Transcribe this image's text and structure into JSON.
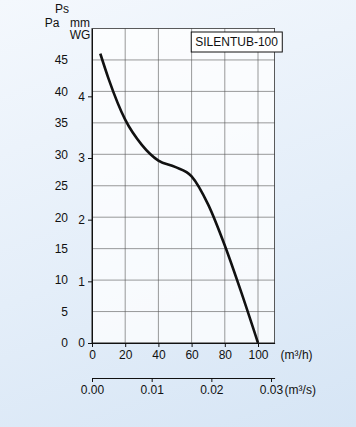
{
  "chart_data": {
    "type": "line",
    "title": "SILENTUB-100",
    "y_label_top": "Ps",
    "y_label": "Pa",
    "y2_label": [
      "mm",
      "WG"
    ],
    "x_label": "(m³/h)",
    "x2_label": "(m³/s)",
    "x": [
      5,
      10,
      20,
      30,
      40,
      50,
      60,
      70,
      80,
      90,
      100
    ],
    "series": [
      {
        "color": "#111111",
        "values": [
          46,
          42,
          35.5,
          31.5,
          29,
          28,
          26.5,
          22,
          15.5,
          8,
          0
        ]
      }
    ],
    "xlim": [
      0,
      110
    ],
    "xticks": [
      0,
      20,
      40,
      60,
      80,
      100
    ],
    "x2lim": [
      0,
      0.0306
    ],
    "x2ticks": [
      {
        "value": 0,
        "label": "0.00"
      },
      0.01,
      0.02,
      0.03
    ],
    "ylim": [
      0,
      50
    ],
    "yticks": [
      0,
      5,
      10,
      15,
      20,
      25,
      30,
      35,
      40,
      45
    ],
    "y2lim": [
      0,
      5.1
    ],
    "y2ticks": [
      0,
      1,
      2,
      3,
      4
    ],
    "grid": true
  }
}
